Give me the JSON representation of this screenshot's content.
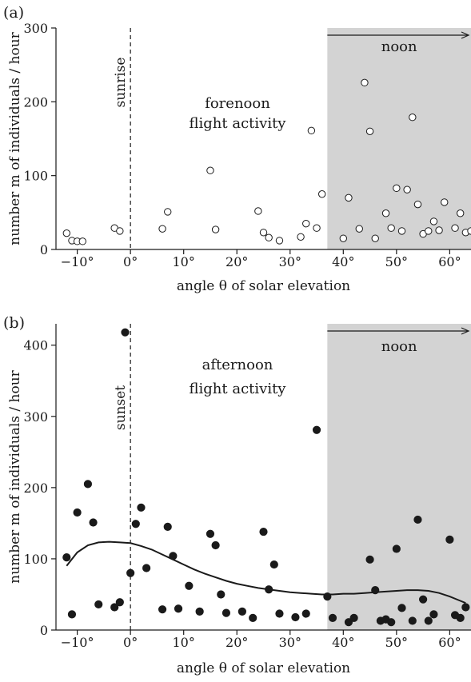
{
  "colors": {
    "noon_shade": "#d3d3d3",
    "ink": "#1a1a1a",
    "marker_fill_open": "#ffffff",
    "marker_fill_solid": "#1a1a1a"
  },
  "chart_data": [
    {
      "panel": "(a)",
      "type": "scatter",
      "xlabel": "angle θ of solar elevation",
      "ylabel": "number m of individuals / hour",
      "xlim": [
        -14,
        64
      ],
      "ylim": [
        0,
        300
      ],
      "xticks": [
        -10,
        0,
        10,
        20,
        30,
        40,
        50,
        60
      ],
      "xtick_labels": [
        "−10°",
        "0°",
        "10°",
        "20°",
        "30°",
        "40°",
        "50°",
        "60°"
      ],
      "yticks": [
        0,
        100,
        200,
        300
      ],
      "ytick_labels": [
        "0",
        "100",
        "200",
        "300"
      ],
      "marker": "open-circle",
      "vline": {
        "x": 0,
        "label": "sunrise"
      },
      "shade": {
        "from": 37,
        "label": "noon"
      },
      "annotation": [
        "forenoon",
        "flight activity"
      ],
      "points": [
        [
          -12,
          22
        ],
        [
          -11,
          12
        ],
        [
          -10,
          11
        ],
        [
          -9,
          11
        ],
        [
          -3,
          29
        ],
        [
          -2,
          25
        ],
        [
          6,
          28
        ],
        [
          7,
          51
        ],
        [
          15,
          107
        ],
        [
          16,
          27
        ],
        [
          24,
          52
        ],
        [
          25,
          23
        ],
        [
          26,
          16
        ],
        [
          28,
          12
        ],
        [
          32,
          17
        ],
        [
          33,
          35
        ],
        [
          34,
          161
        ],
        [
          35,
          29
        ],
        [
          36,
          75
        ],
        [
          40,
          15
        ],
        [
          41,
          70
        ],
        [
          43,
          28
        ],
        [
          44,
          226
        ],
        [
          45,
          160
        ],
        [
          46,
          15
        ],
        [
          48,
          49
        ],
        [
          49,
          29
        ],
        [
          50,
          83
        ],
        [
          51,
          25
        ],
        [
          52,
          81
        ],
        [
          53,
          179
        ],
        [
          54,
          61
        ],
        [
          55,
          21
        ],
        [
          56,
          25
        ],
        [
          57,
          38
        ],
        [
          58,
          26
        ],
        [
          59,
          64
        ],
        [
          61,
          29
        ],
        [
          62,
          49
        ],
        [
          63,
          23
        ],
        [
          64,
          25
        ]
      ]
    },
    {
      "panel": "(b)",
      "type": "scatter",
      "xlabel": "angle θ of solar elevation",
      "ylabel": "number m of individuals / hour",
      "xlim": [
        -14,
        64
      ],
      "ylim": [
        0,
        430
      ],
      "xticks": [
        -10,
        0,
        10,
        20,
        30,
        40,
        50,
        60
      ],
      "xtick_labels": [
        "−10°",
        "0°",
        "10°",
        "20°",
        "30°",
        "40°",
        "50°",
        "60°"
      ],
      "yticks": [
        0,
        100,
        200,
        300,
        400
      ],
      "ytick_labels": [
        "0",
        "100",
        "200",
        "300",
        "400"
      ],
      "marker": "filled-circle",
      "vline": {
        "x": 0,
        "label": "sunset"
      },
      "shade": {
        "from": 37,
        "label": "noon"
      },
      "annotation": [
        "afternoon",
        "flight activity"
      ],
      "points": [
        [
          -12,
          102
        ],
        [
          -11,
          22
        ],
        [
          -10,
          165
        ],
        [
          -8,
          205
        ],
        [
          -7,
          151
        ],
        [
          -6,
          36
        ],
        [
          -3,
          32
        ],
        [
          -2,
          39
        ],
        [
          -1,
          418
        ],
        [
          0,
          80
        ],
        [
          1,
          149
        ],
        [
          2,
          172
        ],
        [
          3,
          87
        ],
        [
          6,
          29
        ],
        [
          7,
          145
        ],
        [
          8,
          104
        ],
        [
          9,
          30
        ],
        [
          11,
          62
        ],
        [
          13,
          26
        ],
        [
          15,
          135
        ],
        [
          16,
          119
        ],
        [
          17,
          50
        ],
        [
          18,
          24
        ],
        [
          21,
          26
        ],
        [
          23,
          17
        ],
        [
          25,
          138
        ],
        [
          26,
          57
        ],
        [
          27,
          92
        ],
        [
          28,
          23
        ],
        [
          31,
          18
        ],
        [
          33,
          23
        ],
        [
          35,
          281
        ],
        [
          37,
          47
        ],
        [
          38,
          17
        ],
        [
          41,
          11
        ],
        [
          42,
          17
        ],
        [
          45,
          99
        ],
        [
          46,
          56
        ],
        [
          47,
          13
        ],
        [
          48,
          15
        ],
        [
          49,
          11
        ],
        [
          50,
          114
        ],
        [
          51,
          31
        ],
        [
          53,
          13
        ],
        [
          54,
          155
        ],
        [
          55,
          43
        ],
        [
          56,
          13
        ],
        [
          57,
          22
        ],
        [
          60,
          127
        ],
        [
          61,
          21
        ],
        [
          62,
          17
        ],
        [
          63,
          32
        ]
      ],
      "trend_curve": [
        [
          -12,
          90
        ],
        [
          -10,
          109
        ],
        [
          -8,
          119
        ],
        [
          -6,
          123
        ],
        [
          -4,
          124
        ],
        [
          -2,
          123
        ],
        [
          0,
          122
        ],
        [
          2,
          118
        ],
        [
          4,
          113
        ],
        [
          6,
          106
        ],
        [
          8,
          99
        ],
        [
          10,
          92
        ],
        [
          12,
          85
        ],
        [
          14,
          79
        ],
        [
          16,
          74
        ],
        [
          18,
          69
        ],
        [
          20,
          65
        ],
        [
          22,
          62
        ],
        [
          24,
          59
        ],
        [
          26,
          57
        ],
        [
          28,
          55
        ],
        [
          30,
          53
        ],
        [
          32,
          52
        ],
        [
          34,
          51
        ],
        [
          36,
          50
        ],
        [
          38,
          50
        ],
        [
          40,
          51
        ],
        [
          42,
          51
        ],
        [
          44,
          52
        ],
        [
          46,
          53
        ],
        [
          48,
          54
        ],
        [
          50,
          55
        ],
        [
          52,
          56
        ],
        [
          54,
          56
        ],
        [
          56,
          55
        ],
        [
          58,
          52
        ],
        [
          60,
          47
        ],
        [
          62,
          41
        ],
        [
          63,
          38
        ]
      ]
    }
  ]
}
